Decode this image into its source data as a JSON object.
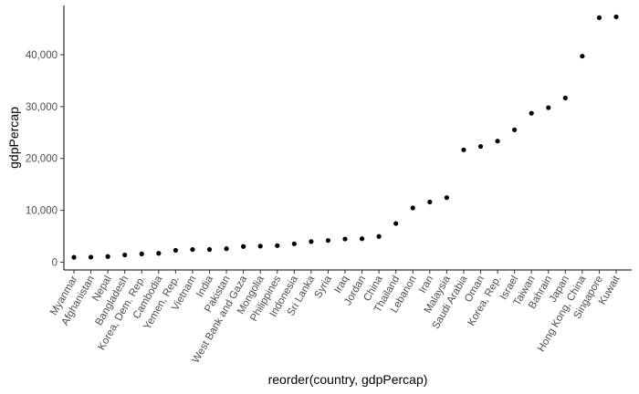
{
  "chart_data": {
    "type": "scatter",
    "xlabel": "reorder(country, gdpPercap)",
    "ylabel": "gdpPercap",
    "ylim": [
      -1500,
      49500
    ],
    "y_ticks": [
      0,
      10000,
      20000,
      30000,
      40000
    ],
    "y_tick_labels": [
      "0",
      "10,000",
      "20,000",
      "30,000",
      "40,000"
    ],
    "grid": false,
    "legend": "none",
    "point_color": "#000000",
    "x": [
      "Myanmar",
      "Afghanistan",
      "Nepal",
      "Bangladesh",
      "Korea, Dem. Rep.",
      "Cambodia",
      "Yemen, Rep.",
      "Vietnam",
      "India",
      "Pakistan",
      "West Bank and Gaza",
      "Mongolia",
      "Philippines",
      "Indonesia",
      "Sri Lanka",
      "Syria",
      "Iraq",
      "Jordan",
      "China",
      "Thailand",
      "Lebanon",
      "Iran",
      "Malaysia",
      "Saudi Arabia",
      "Oman",
      "Korea, Rep.",
      "Israel",
      "Taiwan",
      "Bahrain",
      "Japan",
      "Hong Kong, China",
      "Singapore",
      "Kuwait"
    ],
    "y": [
      944,
      974,
      1091,
      1391,
      1593,
      1713,
      2281,
      2442,
      2452,
      2606,
      3025,
      3096,
      3190,
      3541,
      3970,
      4185,
      4471,
      4519,
      4959,
      7458,
      10461,
      11606,
      12452,
      21655,
      22316,
      23348,
      25523,
      28718,
      29796,
      31656,
      39725,
      47143,
      47307
    ]
  }
}
